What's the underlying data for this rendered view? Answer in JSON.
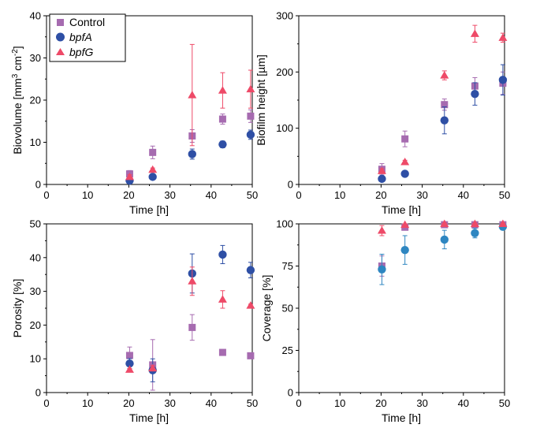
{
  "colors": {
    "control": "#A66BB0",
    "bpfA": "#2E4FA5",
    "bpfG": "#EE4A68",
    "bpfA_coverage": "#2E86C1"
  },
  "legend": {
    "control": "Control",
    "bpfA": "bpfA",
    "bpfG": "bpfG"
  },
  "chart_data": [
    {
      "type": "scatter",
      "xlabel": "Time [h]",
      "ylabel_parts": [
        "Biovolume [mm",
        "3",
        " cm",
        "-2",
        "]"
      ],
      "xlim": [
        0,
        50
      ],
      "ylim": [
        0,
        40
      ],
      "xticks": [
        0,
        10,
        20,
        30,
        40,
        50
      ],
      "yticks": [
        0,
        10,
        20,
        30,
        40
      ],
      "legend_position": "top-left",
      "series": [
        {
          "name": "Control",
          "x": [
            20.2,
            25.8,
            35.4,
            42.8,
            49.6
          ],
          "y": [
            2.5,
            7.6,
            11.5,
            15.5,
            16.2
          ],
          "err": [
            0.8,
            1.5,
            1.5,
            1.2,
            1.5
          ]
        },
        {
          "name": "bpfA",
          "x": [
            20.2,
            25.8,
            35.4,
            42.8,
            49.6
          ],
          "y": [
            0.9,
            1.8,
            7.2,
            9.5,
            11.8
          ],
          "err": [
            0.4,
            0.4,
            1.2,
            0.8,
            1.1
          ]
        },
        {
          "name": "bpfG",
          "x": [
            20.2,
            25.8,
            35.4,
            42.8,
            49.6
          ],
          "y": [
            1.8,
            3.5,
            21.2,
            22.3,
            22.6
          ],
          "err": [
            0.5,
            0.4,
            12.0,
            4.2,
            4.5
          ]
        }
      ]
    },
    {
      "type": "scatter",
      "xlabel": "Time [h]",
      "ylabel": "Biofilm height [µm]",
      "xlim": [
        0,
        50
      ],
      "ylim": [
        0,
        300
      ],
      "xticks": [
        0,
        10,
        20,
        30,
        40,
        50
      ],
      "yticks": [
        0,
        100,
        200,
        300
      ],
      "series": [
        {
          "name": "Control",
          "x": [
            20.2,
            25.8,
            35.4,
            42.8,
            49.6
          ],
          "y": [
            27,
            81,
            142,
            175,
            180
          ],
          "err": [
            10,
            14,
            10,
            15,
            20
          ]
        },
        {
          "name": "bpfA",
          "x": [
            20.2,
            25.8,
            35.4,
            42.8,
            49.6
          ],
          "y": [
            10,
            19,
            114,
            161,
            186
          ],
          "err": [
            3,
            3,
            24,
            20,
            27
          ]
        },
        {
          "name": "bpfG",
          "x": [
            20.2,
            25.8,
            35.4,
            42.8,
            49.6
          ],
          "y": [
            24,
            40,
            194,
            268,
            261
          ],
          "err": [
            4,
            3,
            8,
            15,
            8
          ]
        }
      ]
    },
    {
      "type": "scatter",
      "xlabel": "Time [h]",
      "ylabel": "Porosity [%]",
      "xlim": [
        0,
        50
      ],
      "ylim": [
        0,
        50
      ],
      "xticks": [
        0,
        10,
        20,
        30,
        40,
        50
      ],
      "yticks": [
        0,
        10,
        20,
        30,
        40,
        50
      ],
      "series": [
        {
          "name": "Control",
          "x": [
            20.2,
            25.8,
            35.4,
            42.8,
            49.6
          ],
          "y": [
            11.0,
            8.2,
            19.3,
            11.9,
            10.9
          ],
          "err": [
            2.5,
            7.5,
            3.8,
            0.6,
            0.4
          ]
        },
        {
          "name": "bpfA",
          "x": [
            20.2,
            25.8,
            35.4,
            42.8,
            49.6
          ],
          "y": [
            8.6,
            6.6,
            35.3,
            40.9,
            36.3
          ],
          "err": [
            1.5,
            3.4,
            5.8,
            2.7,
            2.3
          ]
        },
        {
          "name": "bpfG",
          "x": [
            20.2,
            25.8,
            35.4,
            42.8,
            49.6
          ],
          "y": [
            6.8,
            7.2,
            33.0,
            27.6,
            25.8
          ],
          "err": [
            0.3,
            0.8,
            4.2,
            2.6,
            0.4
          ]
        }
      ]
    },
    {
      "type": "scatter",
      "xlabel": "Time [h]",
      "ylabel": "Coverage [%]",
      "xlim": [
        0,
        50
      ],
      "ylim": [
        0,
        100
      ],
      "xticks": [
        0,
        10,
        20,
        30,
        40,
        50
      ],
      "yticks": [
        0,
        25,
        50,
        75,
        100
      ],
      "series": [
        {
          "name": "Control",
          "x": [
            20.2,
            25.8,
            35.4,
            42.8,
            49.6
          ],
          "y": [
            75,
            98,
            99.5,
            99.5,
            99.5
          ],
          "err": [
            6,
            1,
            0.3,
            0.3,
            0.3
          ]
        },
        {
          "name": "bpfA",
          "x": [
            20.2,
            25.8,
            35.4,
            42.8,
            49.6
          ],
          "y": [
            73,
            84.5,
            90.7,
            94.5,
            98.3
          ],
          "err": [
            9,
            8.5,
            5.5,
            2.8,
            1
          ]
        },
        {
          "name": "bpfG",
          "x": [
            20.2,
            25.8,
            35.4,
            42.8,
            49.6
          ],
          "y": [
            96,
            99.5,
            100,
            100,
            100
          ],
          "err": [
            3,
            0.5,
            0.2,
            0.2,
            0.2
          ]
        }
      ]
    }
  ]
}
